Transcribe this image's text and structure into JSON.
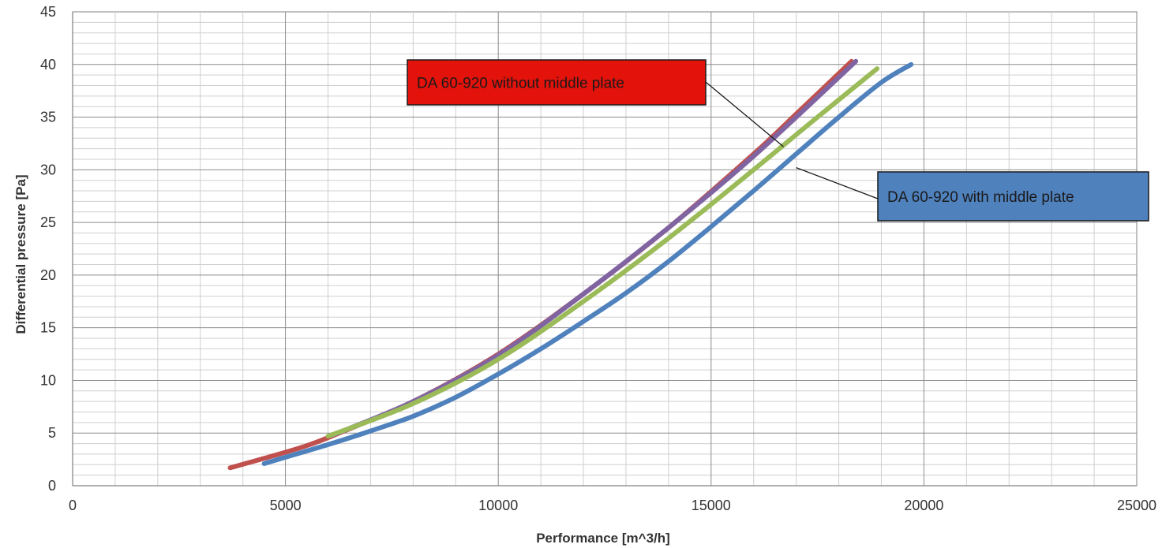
{
  "chart_data": {
    "type": "line",
    "title": "",
    "xlabel": "Performance [m^3/h]",
    "ylabel": "Differential pressure [Pa]",
    "xlim": [
      0,
      25000
    ],
    "ylim": [
      0,
      45
    ],
    "xticks": [
      "0",
      "5000",
      "10000",
      "15000",
      "20000",
      "25000"
    ],
    "yticks": [
      "0",
      "5",
      "10",
      "15",
      "20",
      "25",
      "30",
      "35",
      "40",
      "45"
    ],
    "grid": true,
    "series": [
      {
        "color": "#c0504d",
        "x": [
          3700,
          4500,
          5500,
          6200,
          8000,
          10000,
          12000,
          14000,
          16000,
          17000,
          18300
        ],
        "y": [
          1.7,
          2.6,
          3.8,
          4.9,
          8.0,
          12.5,
          18.2,
          24.5,
          31.5,
          35.3,
          40.3
        ]
      },
      {
        "color": "#8064a2",
        "x": [
          6100,
          8000,
          10000,
          12000,
          14000,
          16000,
          18400
        ],
        "y": [
          4.8,
          8.0,
          12.4,
          18.2,
          24.5,
          31.3,
          40.3
        ]
      },
      {
        "color": "#9bbb59",
        "x": [
          6000,
          8000,
          10000,
          12000,
          14000,
          16000,
          17500,
          18900
        ],
        "y": [
          4.7,
          7.8,
          12.0,
          17.5,
          23.5,
          30.0,
          35.0,
          39.6
        ]
      },
      {
        "color": "#4f81bd",
        "x": [
          4500,
          5000,
          6000,
          7000,
          8000,
          9000,
          10000,
          11000,
          12000,
          13000,
          14000,
          15000,
          16000,
          17000,
          18000,
          19000,
          19700
        ],
        "y": [
          2.1,
          2.7,
          3.9,
          5.2,
          6.6,
          8.4,
          10.6,
          13.0,
          15.6,
          18.3,
          21.3,
          24.6,
          28.0,
          31.5,
          35.0,
          38.3,
          40.0
        ]
      }
    ],
    "annotations": [
      {
        "text": "DA 60-920 without middle plate",
        "fill": "#e3120b",
        "pointer_to": {
          "x": 16700,
          "y": 32.2
        }
      },
      {
        "text": "DA 60-920 with middle plate",
        "fill": "#4f81bd",
        "pointer_to": {
          "x": 17000,
          "y": 30.2
        }
      }
    ]
  }
}
